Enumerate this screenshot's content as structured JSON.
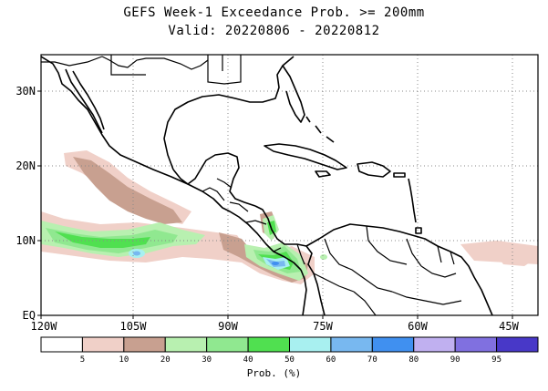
{
  "title_line1": "GEFS Week-1 Exceedance Prob. >= 200mm",
  "title_line2": "Valid: 20220806 - 20220812",
  "lat_labels": [
    "30N",
    "20N",
    "10N",
    "EQ"
  ],
  "lon_labels": [
    "120W",
    "105W",
    "90W",
    "75W",
    "60W",
    "45W"
  ],
  "colorbar": {
    "title": "Prob. (%)",
    "colors": [
      "#ffffff",
      "#f0d0c8",
      "#c8a090",
      "#b8f0b0",
      "#90e890",
      "#50e050",
      "#a8f0f0",
      "#78b8f0",
      "#4090f0",
      "#c0b0f0",
      "#8070e0",
      "#4838c8"
    ],
    "labels": [
      "5",
      "10",
      "20",
      "30",
      "40",
      "50",
      "60",
      "70",
      "80",
      "90",
      "95"
    ]
  },
  "map_icons": {
    "coastline": "coastline-icon",
    "borders": "country-border-icon",
    "gridlines": "dotted-grid"
  }
}
